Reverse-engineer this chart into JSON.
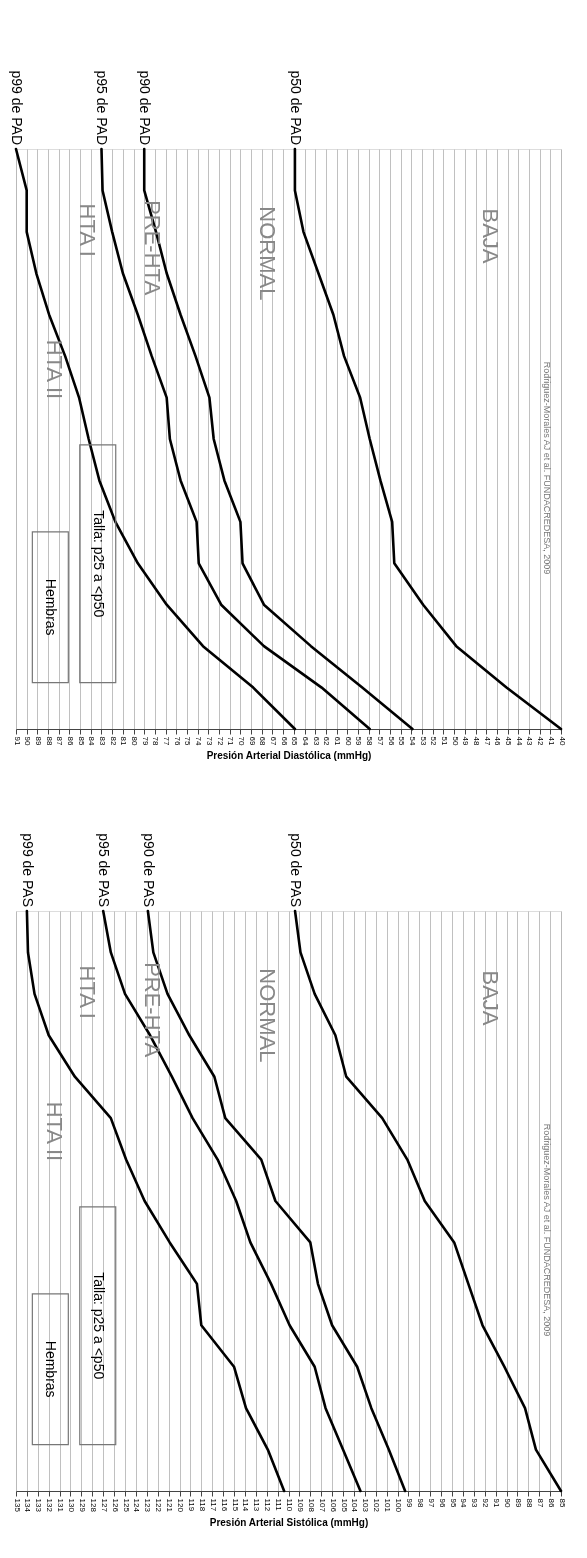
{
  "chart_data": [
    {
      "type": "line",
      "orientation": "horizontal",
      "xlabel": "Presión Arterial Diastólica (mmHg)",
      "xlim": [
        91,
        40
      ],
      "xticks": [
        91,
        90,
        89,
        88,
        87,
        86,
        85,
        84,
        83,
        82,
        81,
        80,
        79,
        78,
        77,
        76,
        75,
        74,
        73,
        72,
        71,
        70,
        69,
        68,
        67,
        66,
        65,
        64,
        63,
        62,
        61,
        60,
        59,
        58,
        57,
        56,
        55,
        54,
        53,
        52,
        51,
        50,
        49,
        48,
        47,
        46,
        45,
        44,
        43,
        42,
        41,
        40
      ],
      "grid": "x",
      "tick_labels": "x",
      "categories": [
        null,
        null,
        null,
        null,
        null,
        null,
        null,
        null,
        null,
        null,
        null,
        null,
        null,
        null,
        null
      ],
      "series": [
        {
          "name": "p99 de PAD",
          "color": "#000000",
          "values": [
            91.0,
            90.0,
            90.0,
            89.1,
            87.9,
            86.4,
            85.1,
            84.2,
            83.2,
            81.7,
            79.6,
            76.9,
            73.5,
            68.8,
            64.9
          ]
        },
        {
          "name": "p95 de PAD",
          "color": "#000000",
          "values": [
            83.0,
            82.9,
            82.0,
            81.0,
            79.6,
            78.3,
            76.9,
            76.6,
            75.6,
            74.1,
            73.9,
            71.8,
            67.8,
            62.4,
            57.9
          ]
        },
        {
          "name": "p90 de PAD",
          "color": "#000000",
          "values": [
            79.0,
            79.0,
            77.9,
            76.9,
            75.6,
            74.2,
            72.9,
            72.5,
            71.5,
            70.0,
            69.8,
            67.8,
            63.4,
            58.6,
            53.9
          ]
        },
        {
          "name": "p50 de PAD",
          "color": "#000000",
          "values": [
            64.9,
            64.9,
            64.1,
            62.7,
            61.3,
            60.3,
            58.8,
            57.9,
            56.9,
            55.8,
            55.6,
            52.9,
            49.8,
            45.1,
            40.0
          ]
        }
      ],
      "annotations": [
        "HTA II",
        "HTA I",
        "PRE-HTA",
        "NORMAL",
        "BAJA",
        "Hembras",
        "Talla: p25 a <p50",
        "Rodriguez-Morales AJ et al. FUNDACREDESA, 2009"
      ]
    },
    {
      "type": "line",
      "orientation": "horizontal",
      "xlabel": "Presión Arterial Sistólica (mmHg)",
      "xlim": [
        135,
        85
      ],
      "xticks": [
        135,
        134,
        133,
        132,
        131,
        130,
        129,
        128,
        127,
        126,
        125,
        124,
        123,
        122,
        121,
        120,
        119,
        118,
        117,
        116,
        115,
        114,
        113,
        112,
        111,
        110,
        109,
        108,
        107,
        106,
        105,
        104,
        103,
        102,
        101,
        100,
        99,
        98,
        97,
        96,
        95,
        94,
        93,
        92,
        91,
        90,
        89,
        88,
        87,
        86,
        85
      ],
      "grid": "x",
      "tick_labels": "x",
      "categories": [
        null,
        null,
        null,
        null,
        null,
        null,
        null,
        null,
        null,
        null,
        null,
        null,
        null,
        null,
        null
      ],
      "series": [
        {
          "name": "p99 de PAS",
          "color": "#000000",
          "values": [
            134.0,
            133.9,
            133.3,
            132.0,
            129.6,
            126.3,
            124.9,
            123.2,
            120.9,
            118.4,
            118.0,
            115.0,
            113.9,
            111.9,
            110.4
          ]
        },
        {
          "name": "p95 de PAS",
          "color": "#000000",
          "values": [
            127.0,
            126.3,
            125.0,
            122.7,
            120.7,
            118.8,
            116.5,
            114.8,
            113.5,
            111.6,
            109.9,
            107.6,
            106.6,
            105.0,
            103.4
          ]
        },
        {
          "name": "p90 de PAS",
          "color": "#000000",
          "values": [
            122.9,
            122.4,
            121.1,
            119.1,
            116.8,
            115.8,
            112.5,
            111.2,
            108.0,
            107.3,
            106.0,
            103.7,
            102.4,
            100.8,
            99.3
          ]
        },
        {
          "name": "p50 de PAS",
          "color": "#000000",
          "values": [
            109.4,
            108.9,
            107.6,
            105.7,
            104.7,
            101.4,
            99.1,
            97.5,
            94.8,
            93.5,
            92.2,
            90.2,
            88.3,
            87.3,
            85.0
          ]
        }
      ],
      "annotations": [
        "HTA II",
        "HTA I",
        "PRE-HTA",
        "NORMAL",
        "BAJA",
        "Hembras",
        "Talla: p25 a <p50",
        "Rodriguez-Morales AJ et al. FUNDACREDESA, 2009"
      ]
    }
  ]
}
